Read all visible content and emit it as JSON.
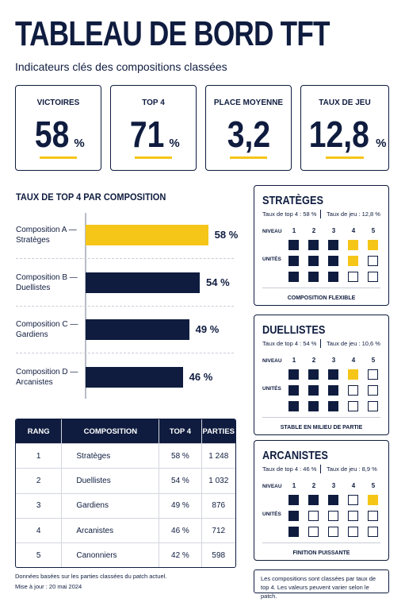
{
  "header": {
    "title": "TABLEAU DE BORD TFT",
    "subtitle": "Indicateurs clés des compositions classées"
  },
  "kpis": [
    {
      "label": "VICTOIRES",
      "value": "58",
      "unit": "%"
    },
    {
      "label": "TOP 4",
      "value": "71",
      "unit": "%"
    },
    {
      "label": "PLACE MOYENNE",
      "value": "3,2"
    },
    {
      "label": "TAUX DE JEU",
      "value": "12,8",
      "unit": "%"
    }
  ],
  "chart_data": {
    "type": "bar",
    "orientation": "horizontal",
    "title": "TAUX DE TOP 4 PAR COMPOSITION",
    "categories": [
      "Composition A — Stratèges",
      "Composition B — Duellistes",
      "Composition C — Gardiens",
      "Composition D — Arcanistes"
    ],
    "values": [
      58,
      54,
      49,
      46
    ],
    "value_labels": [
      "58 %",
      "54 %",
      "49 %",
      "46 %"
    ],
    "colors": [
      "#f5c518",
      "#0f1c3f",
      "#0f1c3f",
      "#0f1c3f"
    ],
    "xlim": [
      0,
      60
    ]
  },
  "table": {
    "header": [
      "RANG",
      "COMPOSITION",
      "TOP 4",
      "PARTIES"
    ],
    "rows": [
      [
        "1",
        "Stratèges",
        "58 %",
        "1 248"
      ],
      [
        "2",
        "Duellistes",
        "54 %",
        "1 032"
      ],
      [
        "3",
        "Gardiens",
        "49 %",
        "876"
      ],
      [
        "4",
        "Arcanistes",
        "46 %",
        "712"
      ],
      [
        "5",
        "Canonniers",
        "42 %",
        "598"
      ]
    ]
  },
  "levels": [
    "1",
    "2",
    "3",
    "4",
    "5"
  ],
  "panels": [
    {
      "title": "STRATÈGES",
      "top4": "Taux de top 4 : 58 %",
      "play": "Taux de jeu : 12,8 %",
      "level_label": "NIVEAU",
      "units_label": "UNITÉS",
      "footer": "COMPOSITION FLEXIBLE"
    },
    {
      "title": "DUELLISTES",
      "top4": "Taux de top 4 : 54 %",
      "play": "Taux de jeu : 10,6 %",
      "level_label": "NIVEAU",
      "units_label": "UNITÉS",
      "footer": "STABLE EN MILIEU DE PARTIE"
    },
    {
      "title": "ARCANISTES",
      "top4": "Taux de top 4 : 46 %",
      "play": "Taux de jeu : 8,9 %",
      "level_label": "NIVEAU",
      "units_label": "UNITÉS",
      "footer": "FINITION PUISSANTE"
    }
  ],
  "footer": {
    "note": [
      "Données basées sur les parties classées du patch actuel.",
      "Mise à jour : 20 mai 2024"
    ],
    "box": "Les compositions sont classées par taux de top 4. Les valeurs peuvent varier selon le patch."
  }
}
